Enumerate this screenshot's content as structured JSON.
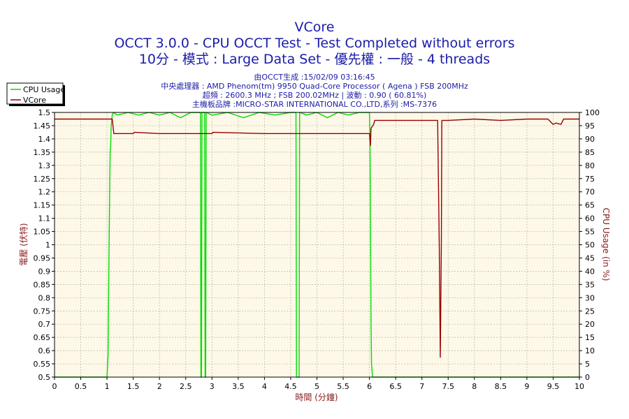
{
  "titles": {
    "line1": "VCore",
    "line2": "OCCT 3.0.0 - CPU OCCT Test - Test Completed without errors",
    "line3": "10分 - 模式 : Large Data Set - 優先權 : 一般 - 4 threads"
  },
  "info": {
    "line1": "由OCCT生成 :15/02/09 03:16:45",
    "line2": "中央處理器 : AMD Phenom(tm) 9950 Quad-Core Processor ( Agena ) FSB 200MHz",
    "line3": "超頻 : 2600.3 MHz ; FSB 200.02MHz | 波動 : 0.90 ( 60.81%)",
    "line4": "主機板品牌 :MICRO-STAR INTERNATIONAL CO.,LTD,系列 :MS-7376"
  },
  "colors": {
    "background": "#ffffff",
    "plot_background": "#fdf8e8",
    "grid": "#b8b8a0",
    "cpu_usage": "#00dd00",
    "vcore": "#990000",
    "title": "#1b1baa",
    "axis_label": "#8b1a1a"
  },
  "chart_data": {
    "type": "line",
    "xlabel": "時間 (分鐘)",
    "ylabel": "電壓 (伏特)",
    "y2label": "CPU Usage (in %)",
    "xlim": [
      0,
      10
    ],
    "ylim": [
      0.5,
      1.5
    ],
    "y2lim": [
      0,
      100
    ],
    "grid": true,
    "legend_position": "top-left",
    "x_ticks": [
      "0",
      "0.5",
      "1",
      "1.5",
      "2",
      "2.5",
      "3",
      "3.5",
      "4",
      "4.5",
      "5",
      "5.5",
      "6",
      "6.5",
      "7",
      "7.5",
      "8",
      "8.5",
      "9",
      "9.5",
      "10"
    ],
    "y_ticks": [
      "0.5",
      "0.55",
      "0.6",
      "0.65",
      "0.7",
      "0.75",
      "0.8",
      "0.85",
      "0.9",
      "0.95",
      "1",
      "1.05",
      "1.1",
      "1.15",
      "1.2",
      "1.25",
      "1.3",
      "1.35",
      "1.4",
      "1.45",
      "1.5"
    ],
    "y2_ticks": [
      "0",
      "5",
      "10",
      "15",
      "20",
      "25",
      "30",
      "35",
      "40",
      "45",
      "50",
      "55",
      "60",
      "65",
      "70",
      "75",
      "80",
      "85",
      "90",
      "95",
      "100"
    ],
    "series": [
      {
        "name": "CPU Usage",
        "axis": "right",
        "x": [
          0,
          1.0,
          1.02,
          1.04,
          1.05,
          1.06,
          1.07,
          1.08,
          1.1,
          1.12,
          1.2,
          1.4,
          1.6,
          1.8,
          2.0,
          2.2,
          2.4,
          2.6,
          2.78,
          2.79,
          2.8,
          2.81,
          2.86,
          2.87,
          2.88,
          2.89,
          3.0,
          3.3,
          3.6,
          3.9,
          4.2,
          4.5,
          4.6,
          4.61,
          4.62,
          4.65,
          4.66,
          4.67,
          4.68,
          4.8,
          5.0,
          5.2,
          5.4,
          5.6,
          5.8,
          6.0,
          6.01,
          6.02,
          6.03,
          6.04,
          6.05,
          6.06,
          7.0,
          8.0,
          9.0,
          10
        ],
        "values": [
          0,
          0,
          8,
          50,
          70,
          85,
          88,
          95,
          99,
          100,
          99,
          100,
          99,
          100,
          99,
          100,
          98,
          100,
          100,
          0,
          0,
          100,
          100,
          0,
          0,
          100,
          99,
          100,
          98,
          100,
          99,
          100,
          100,
          0,
          0,
          0,
          0,
          100,
          100,
          99,
          100,
          98,
          100,
          99,
          100,
          100,
          90,
          60,
          20,
          5,
          2,
          0,
          0,
          0,
          0,
          0
        ]
      },
      {
        "name": "VCore",
        "axis": "left",
        "x": [
          0,
          1.1,
          1.13,
          1.5,
          1.52,
          2.0,
          3.0,
          3.02,
          4.0,
          5.0,
          6.0,
          6.02,
          6.03,
          6.08,
          6.1,
          6.5,
          7.0,
          7.3,
          7.33,
          7.35,
          7.37,
          7.38,
          7.4,
          7.5,
          8.0,
          8.5,
          9.0,
          9.4,
          9.5,
          9.55,
          9.65,
          9.7,
          10
        ],
        "values": [
          1.475,
          1.475,
          1.42,
          1.42,
          1.425,
          1.42,
          1.42,
          1.425,
          1.42,
          1.42,
          1.42,
          1.375,
          1.44,
          1.455,
          1.47,
          1.47,
          1.47,
          1.47,
          1.0,
          0.575,
          1.0,
          1.47,
          1.47,
          1.47,
          1.475,
          1.47,
          1.475,
          1.475,
          1.455,
          1.46,
          1.455,
          1.475,
          1.475
        ]
      }
    ]
  }
}
